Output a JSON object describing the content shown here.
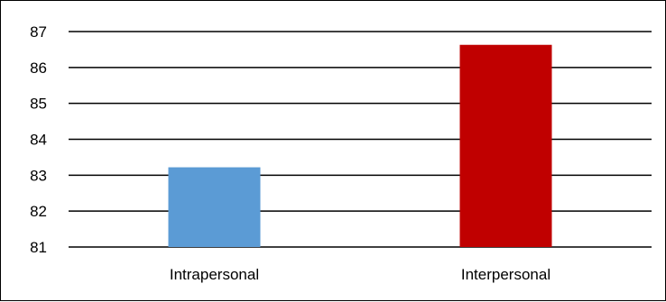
{
  "chart_data": {
    "type": "bar",
    "title": "",
    "xlabel": "",
    "ylabel": "",
    "categories": [
      "Intrapersonal",
      "Interpersonal"
    ],
    "values": [
      83.22,
      86.63
    ],
    "bar_colors": [
      "#5b9bd5",
      "#c00000"
    ],
    "ylim": [
      81,
      87
    ],
    "yticks": [
      "81",
      "82",
      "83",
      "84",
      "85",
      "86",
      "87"
    ],
    "grid": true,
    "legend": "none"
  }
}
